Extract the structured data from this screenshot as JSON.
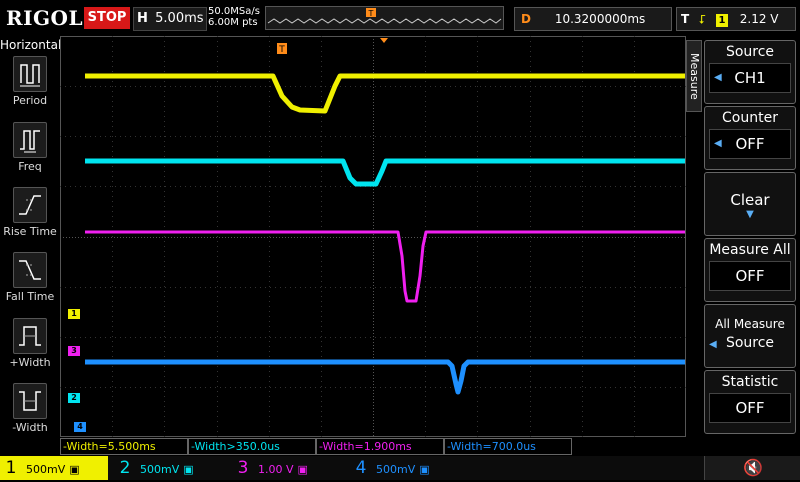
{
  "top": {
    "brand": "RIGOL",
    "run_state": "STOP",
    "horizontal_key": "H",
    "timebase": "5.00ms",
    "sample_rate": "50.0MSa/s",
    "memory_depth": "6.00M pts",
    "delay_key": "D",
    "delay": "10.3200000ms",
    "trigger_key": "T",
    "trigger_source": "1",
    "trigger_level": "2.12 V"
  },
  "left_menu": {
    "title": "Horizontal",
    "items": [
      {
        "label": "Period",
        "icon": "period-icon"
      },
      {
        "label": "Freq",
        "icon": "frequency-icon"
      },
      {
        "label": "Rise Time",
        "icon": "rise-time-icon"
      },
      {
        "label": "Fall Time",
        "icon": "fall-time-icon"
      },
      {
        "label": "+Width",
        "icon": "positive-width-icon"
      },
      {
        "label": "-Width",
        "icon": "negative-width-icon"
      }
    ]
  },
  "right_menu": {
    "tab": "Measure",
    "source": {
      "title": "Source",
      "value": "CH1"
    },
    "counter": {
      "title": "Counter",
      "value": "OFF"
    },
    "clear": {
      "title": "Clear"
    },
    "measure_all": {
      "title": "Measure All",
      "value": "OFF"
    },
    "all_measure_source": {
      "line1": "All Measure",
      "line2": "Source"
    },
    "statistic": {
      "title": "Statistic",
      "value": "OFF"
    }
  },
  "measurements": [
    {
      "text": "-Width=5.500ms",
      "color": "#f0f000"
    },
    {
      "text": "-Width>350.0us",
      "color": "#00e5f0"
    },
    {
      "text": "-Width=1.900ms",
      "color": "#f020f0"
    },
    {
      "text": "-Width=700.0us",
      "color": "#1e90ff"
    }
  ],
  "channels": [
    {
      "num": "1",
      "scale": "500mV",
      "color": "#f0f000"
    },
    {
      "num": "2",
      "scale": "500mV",
      "color": "#00e5f0"
    },
    {
      "num": "3",
      "scale": "1.00 V",
      "color": "#f020f0"
    },
    {
      "num": "4",
      "scale": "500mV",
      "color": "#1e90ff"
    }
  ],
  "channel_markers": [
    "1",
    "3",
    "2",
    "4"
  ],
  "trigger_marker": "T",
  "colors": {
    "ch1": "#f0f000",
    "ch2": "#00e5f0",
    "ch3": "#f020f0",
    "ch4": "#1e90ff",
    "trigger": "#ff8c1a",
    "stop": "#d81818",
    "accent": "#5aaef5"
  }
}
